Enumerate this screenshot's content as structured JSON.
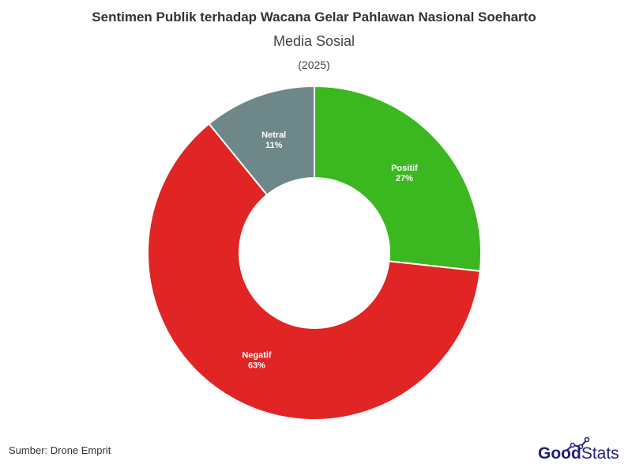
{
  "chart_data": {
    "type": "pie",
    "variant": "donut",
    "title": "Sentimen Publik terhadap Wacana Gelar Pahlawan Nasional Soeharto",
    "subtitle": "Media Sosial",
    "period": "(2025)",
    "categories": [
      "Positif",
      "Negatif",
      "Netral"
    ],
    "values": [
      27,
      63,
      11
    ],
    "value_labels": [
      "27%",
      "63%",
      "11%"
    ],
    "colors": [
      "#3bb820",
      "#e12424",
      "#6e8788"
    ],
    "start": "top",
    "direction": "clockwise"
  },
  "source": "Sumber: Drone Emprit",
  "logo": {
    "text_bold": "Good",
    "text_light": "Stats",
    "color": "#1e1f7a"
  }
}
